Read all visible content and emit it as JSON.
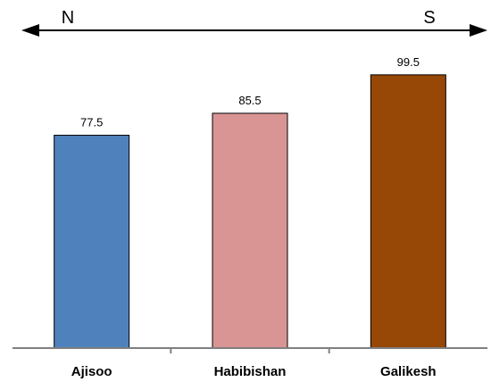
{
  "direction": {
    "left_label": "N",
    "right_label": "S"
  },
  "chart_data": {
    "type": "bar",
    "title": "",
    "xlabel": "",
    "ylabel": "",
    "ylim": [
      0,
      104
    ],
    "grid": false,
    "categories": [
      "Ajisoo",
      "Habibishan",
      "Galikesh"
    ],
    "values": [
      77.5,
      85.5,
      99.5
    ],
    "value_labels": [
      "77.5",
      "85.5",
      "99.5"
    ],
    "colors": [
      "#4f81bd",
      "#d99594",
      "#974706"
    ]
  }
}
